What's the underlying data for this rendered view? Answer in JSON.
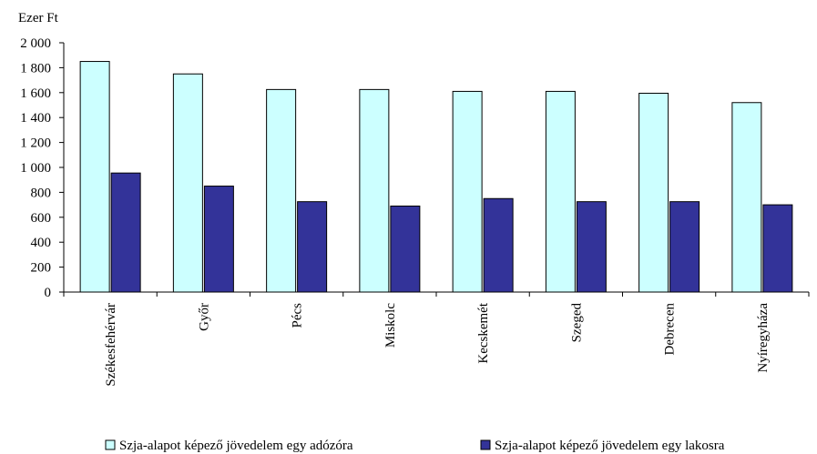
{
  "chart_data": {
    "type": "bar",
    "ylabel": "Ezer Ft",
    "ylim": [
      0,
      2000
    ],
    "ytick_step": 200,
    "ytick_labels": [
      "0",
      "200",
      "400",
      "600",
      "800",
      "1 000",
      "1 200",
      "1 400",
      "1 600",
      "1 800",
      "2 000"
    ],
    "grid": false,
    "legend_position": "bottom",
    "categories": [
      "Székesfehérvár",
      "Győr",
      "Pécs",
      "Miskolc",
      "Kecskemét",
      "Szeged",
      "Debrecen",
      "Nyíregyháza"
    ],
    "series": [
      {
        "name": "Szja-alapot képező jövedelem egy adózóra",
        "color": "#ccffff",
        "values": [
          1850,
          1750,
          1625,
          1625,
          1610,
          1610,
          1595,
          1520
        ]
      },
      {
        "name": "Szja-alapot képező jövedelem egy lakosra",
        "color": "#333399",
        "values": [
          955,
          850,
          725,
          690,
          750,
          725,
          725,
          700
        ]
      }
    ]
  }
}
